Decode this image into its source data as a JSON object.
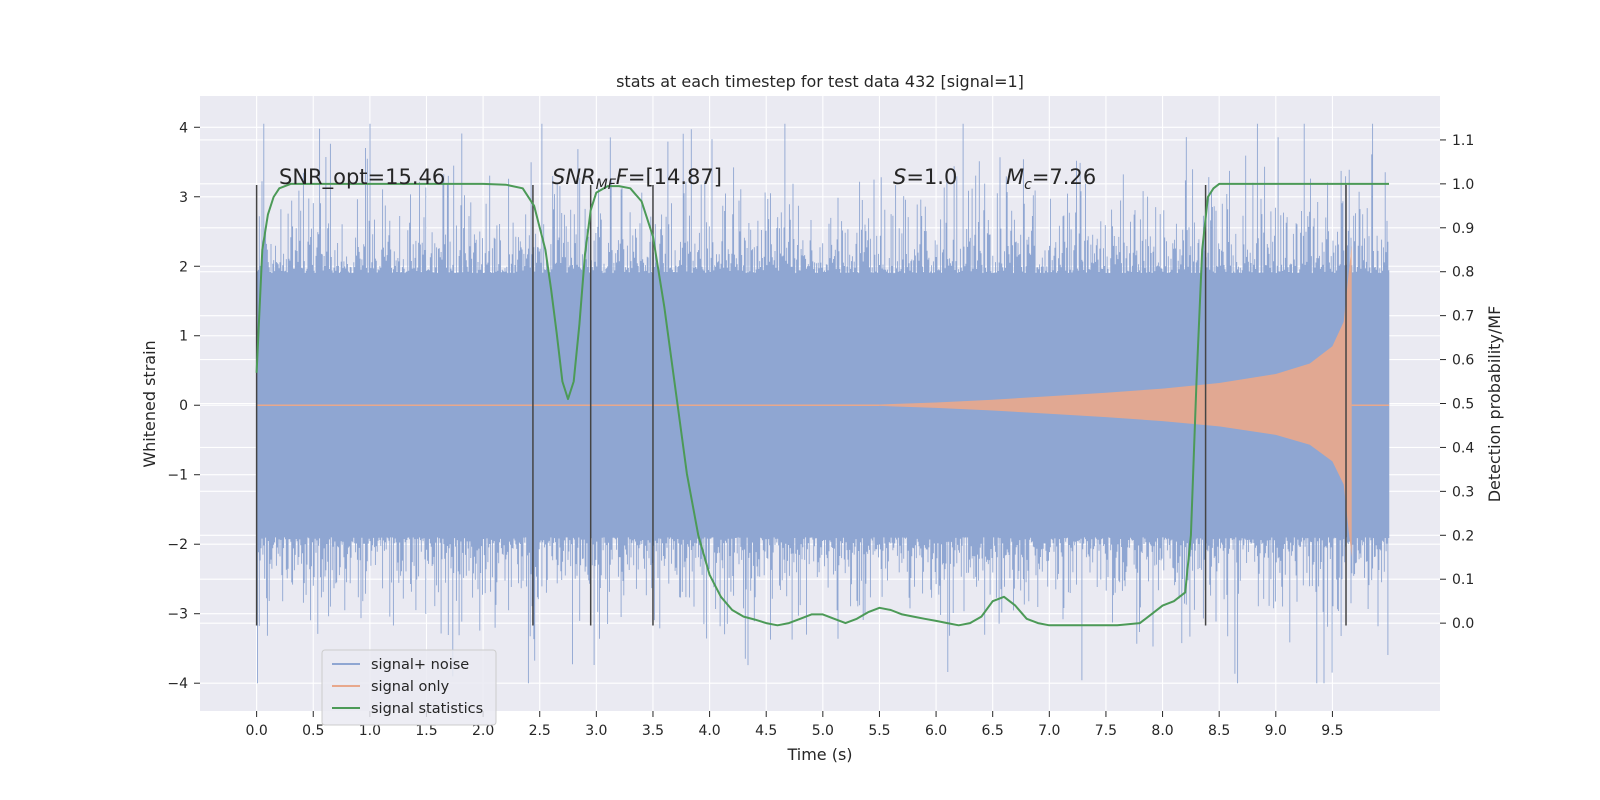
{
  "chart_data": {
    "type": "line",
    "title": "stats at each timestep for test data 432 [signal=1]",
    "xlabel": "Time (s)",
    "ylabel_left": "Whitened strain",
    "ylabel_right": "Detection probability/MF",
    "xlim": [
      -0.5,
      10.45
    ],
    "ylim_left": [
      -4.4,
      4.45
    ],
    "ylim_right": [
      -0.2,
      1.2
    ],
    "x_ticks": [
      "0.0",
      "0.5",
      "1.0",
      "1.5",
      "2.0",
      "2.5",
      "3.0",
      "3.5",
      "4.0",
      "4.5",
      "5.0",
      "5.5",
      "6.0",
      "6.5",
      "7.0",
      "7.5",
      "8.0",
      "8.5",
      "9.0",
      "9.5"
    ],
    "y_ticks_left": [
      "4",
      "3",
      "2",
      "1",
      "0",
      "−1",
      "−2",
      "−3",
      "−4"
    ],
    "y_ticks_right": [
      "1.1",
      "1.0",
      "0.9",
      "0.8",
      "0.7",
      "0.6",
      "0.5",
      "0.4",
      "0.3",
      "0.2",
      "0.1",
      "0.0"
    ],
    "grid": true,
    "legend_position": "lower-left",
    "legend": [
      {
        "label": "signal+ noise",
        "color": "#8fa6d2"
      },
      {
        "label": "signal only",
        "color": "#e8a88c"
      },
      {
        "label": "signal statistics",
        "color": "#4c9a57"
      }
    ],
    "annotations": {
      "snr_opt": "SNR_opt=15.46",
      "snr_mf_base": "SNR",
      "snr_mf_sub": "MF",
      "snr_mf_rest": "=[14.87]",
      "s_italic": "S",
      "s_rest": "=1.0",
      "mc_base": "M",
      "mc_sub": "c",
      "mc_rest": "=7.26"
    },
    "vertical_markers_x": [
      0.0,
      2.44,
      2.95,
      3.5,
      8.38,
      9.62
    ],
    "series": [
      {
        "name": "signal+ noise",
        "color": "#8fa6d2",
        "x_range": [
          0.0,
          10.0
        ],
        "envelope_typical": 1.9,
        "envelope_peak": 4.05,
        "y_min": -4.0
      },
      {
        "name": "signal only",
        "color": "#e8a88c",
        "x": [
          5.5,
          6.0,
          6.5,
          7.0,
          7.5,
          8.0,
          8.5,
          9.0,
          9.3,
          9.5,
          9.6,
          9.65,
          9.67
        ],
        "amplitude": [
          0.01,
          0.04,
          0.08,
          0.13,
          0.18,
          0.24,
          0.32,
          0.45,
          0.6,
          0.85,
          1.2,
          2.0,
          2.3
        ]
      },
      {
        "name": "signal statistics",
        "color": "#4c9a57",
        "x": [
          0.0,
          0.05,
          0.1,
          0.15,
          0.2,
          0.3,
          0.5,
          1.0,
          1.5,
          2.0,
          2.2,
          2.35,
          2.45,
          2.55,
          2.6,
          2.65,
          2.7,
          2.75,
          2.8,
          2.85,
          2.9,
          2.95,
          3.0,
          3.1,
          3.2,
          3.3,
          3.4,
          3.5,
          3.6,
          3.7,
          3.8,
          3.9,
          4.0,
          4.1,
          4.2,
          4.3,
          4.4,
          4.5,
          4.6,
          4.7,
          4.8,
          4.9,
          5.0,
          5.1,
          5.2,
          5.3,
          5.4,
          5.5,
          5.6,
          5.7,
          5.8,
          5.9,
          6.0,
          6.1,
          6.2,
          6.3,
          6.4,
          6.5,
          6.6,
          6.7,
          6.8,
          6.9,
          7.0,
          7.2,
          7.4,
          7.6,
          7.8,
          7.9,
          8.0,
          8.1,
          8.15,
          8.2,
          8.25,
          8.3,
          8.35,
          8.4,
          8.45,
          8.5,
          8.6,
          9.0,
          9.5,
          10.0
        ],
        "y": [
          0.57,
          0.85,
          0.93,
          0.97,
          0.99,
          1.0,
          1.0,
          1.0,
          1.0,
          1.0,
          0.998,
          0.99,
          0.95,
          0.85,
          0.76,
          0.66,
          0.55,
          0.51,
          0.55,
          0.68,
          0.84,
          0.94,
          0.98,
          0.995,
          0.995,
          0.99,
          0.96,
          0.88,
          0.72,
          0.53,
          0.34,
          0.2,
          0.11,
          0.06,
          0.03,
          0.015,
          0.008,
          0.0,
          -0.005,
          0.0,
          0.01,
          0.02,
          0.02,
          0.01,
          0.0,
          0.01,
          0.025,
          0.035,
          0.03,
          0.02,
          0.015,
          0.01,
          0.005,
          0.0,
          -0.005,
          0.0,
          0.015,
          0.05,
          0.06,
          0.04,
          0.01,
          0.0,
          -0.005,
          -0.005,
          -0.005,
          -0.005,
          0.0,
          0.02,
          0.04,
          0.05,
          0.06,
          0.07,
          0.2,
          0.55,
          0.85,
          0.97,
          0.99,
          1.0,
          1.0,
          1.0,
          1.0,
          1.0
        ]
      }
    ]
  }
}
